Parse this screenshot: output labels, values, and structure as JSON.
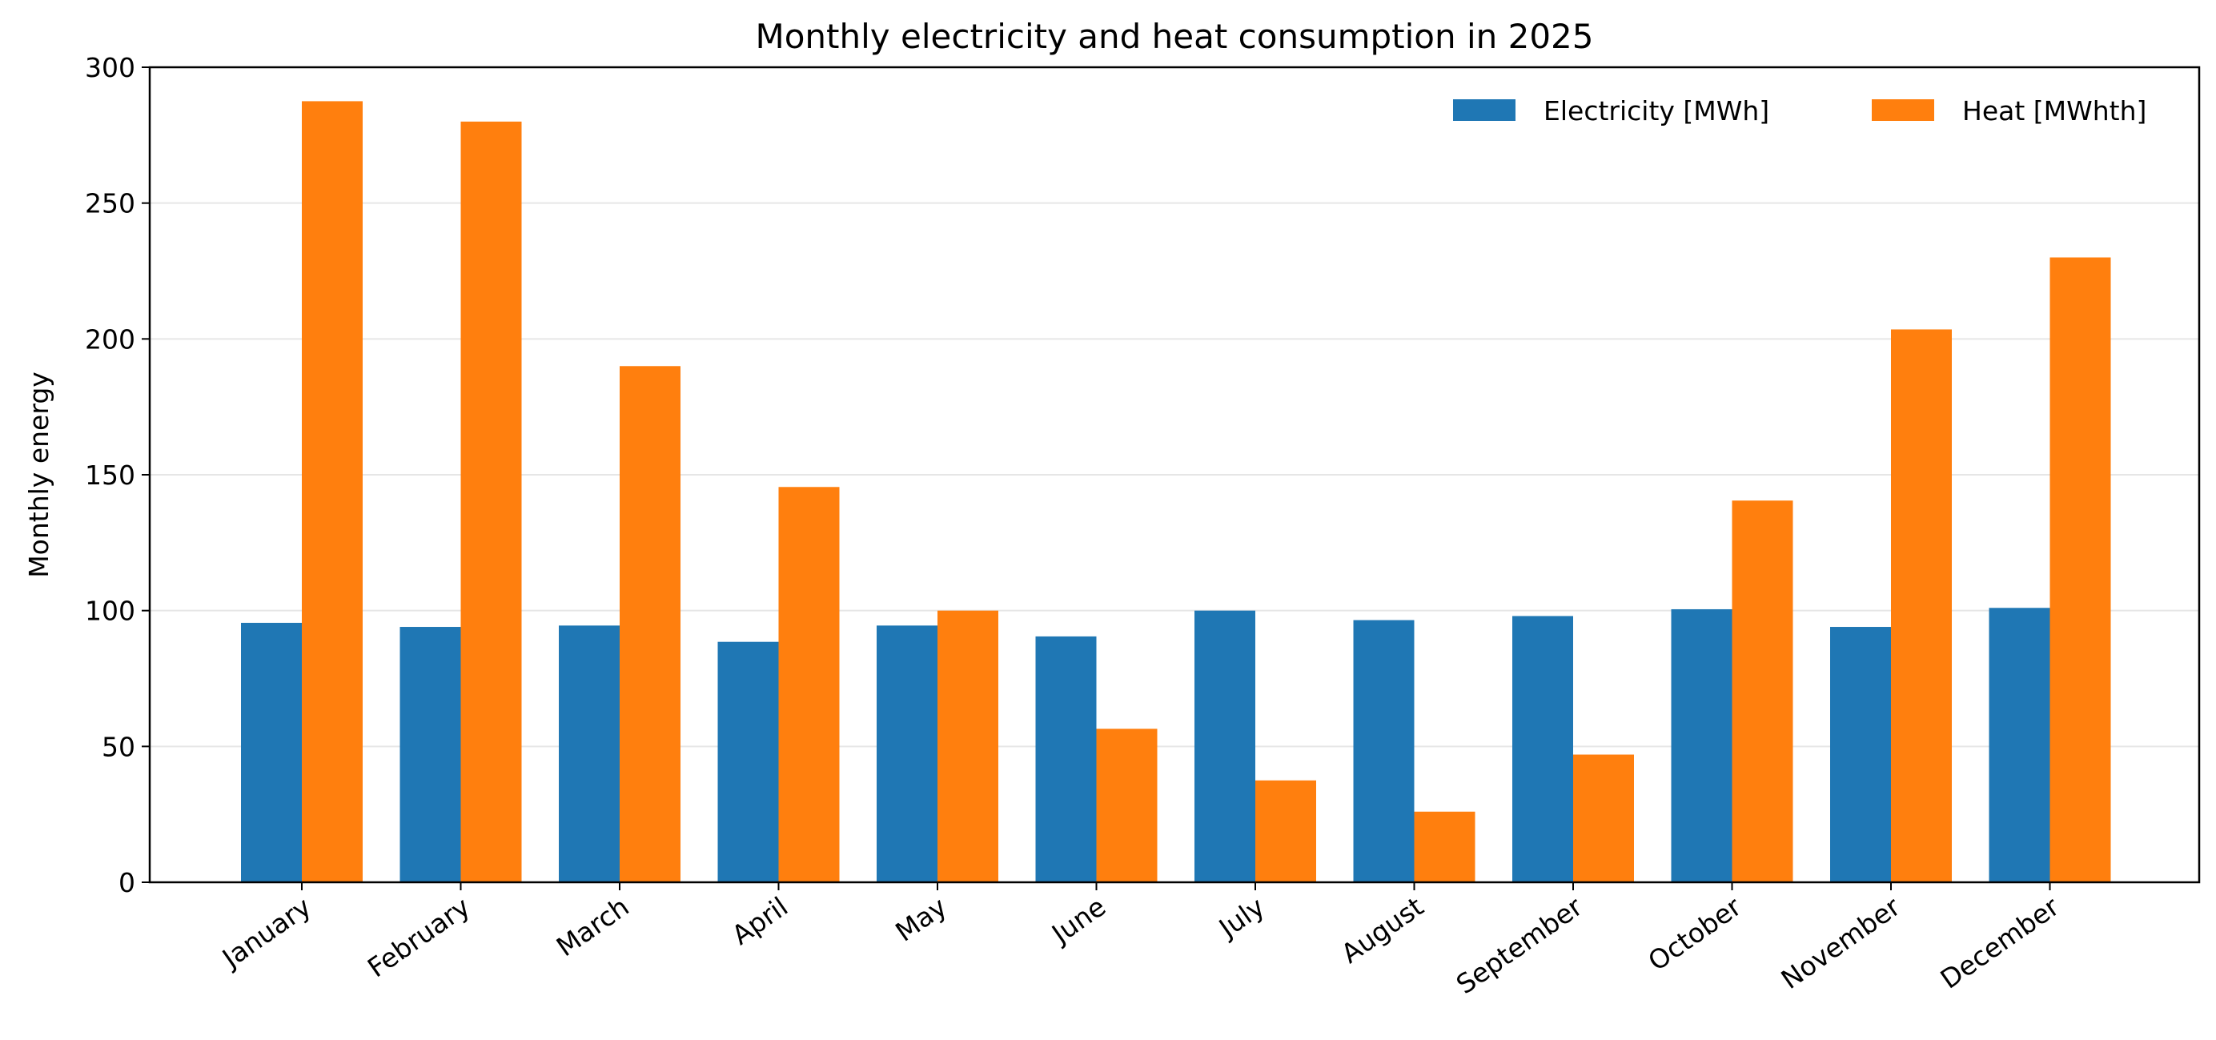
{
  "chart_data": {
    "type": "bar",
    "title": "Monthly electricity and heat consumption in 2025",
    "xlabel": "",
    "ylabel": "Monthly energy",
    "categories": [
      "January",
      "February",
      "March",
      "April",
      "May",
      "June",
      "July",
      "August",
      "September",
      "October",
      "November",
      "December"
    ],
    "series": [
      {
        "name": "Electricity [MWh]",
        "color": "#1f77b4",
        "values": [
          95.5,
          94,
          94.5,
          88.5,
          94.5,
          90.5,
          100,
          96.5,
          98,
          100.5,
          94,
          101
        ]
      },
      {
        "name": "Heat [MWhth]",
        "color": "#ff7f0e",
        "values": [
          287.5,
          280,
          190,
          145.5,
          100,
          56.5,
          37.5,
          26,
          47,
          140.5,
          203.5,
          230
        ]
      }
    ],
    "ylim": [
      0,
      300
    ],
    "yticks": [
      0,
      50,
      100,
      150,
      200,
      250,
      300
    ],
    "grid": "horizontal",
    "legend_position": "top-right"
  }
}
